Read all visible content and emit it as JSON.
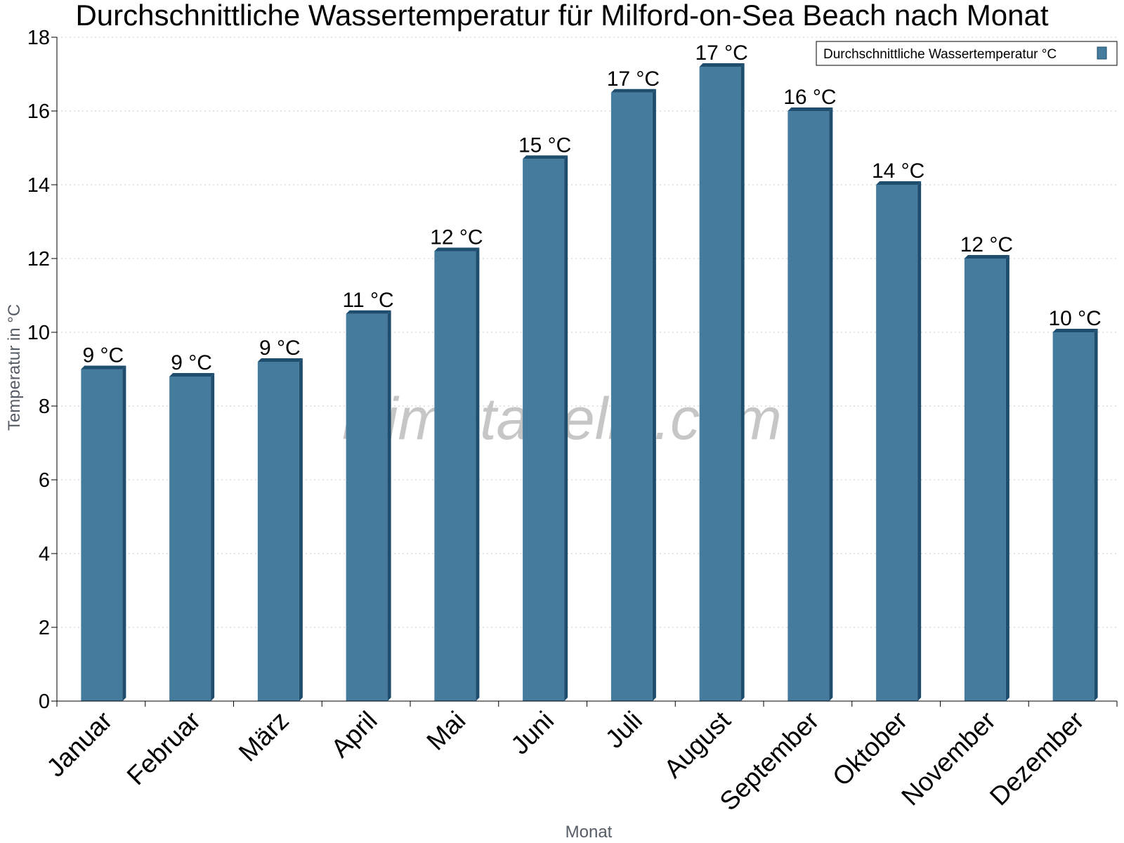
{
  "chart_data": {
    "type": "bar",
    "title": "Durchschnittliche Wassertemperatur für Milford-on-Sea Beach nach Monat",
    "xlabel": "Monat",
    "ylabel": "Temperatur in °C",
    "categories": [
      "Januar",
      "Februar",
      "März",
      "April",
      "Mai",
      "Juni",
      "Juli",
      "August",
      "September",
      "Oktober",
      "November",
      "Dezember"
    ],
    "series": [
      {
        "name": "Durchschnittliche Wassertemperatur °C",
        "values": [
          9.0,
          8.8,
          9.2,
          10.5,
          12.2,
          14.7,
          16.5,
          17.2,
          16.0,
          14.0,
          12.0,
          10.0
        ],
        "labels": [
          "9 °C",
          "9 °C",
          "9 °C",
          "11 °C",
          "12 °C",
          "15 °C",
          "17 °C",
          "17 °C",
          "16 °C",
          "14 °C",
          "12 °C",
          "10 °C"
        ]
      }
    ],
    "ylim": [
      0,
      18
    ],
    "yticks": [
      0,
      2,
      4,
      6,
      8,
      10,
      12,
      14,
      16,
      18
    ],
    "grid": true,
    "legend": "top-right",
    "watermark": "klimatabelle.com",
    "colors": {
      "bar": "#457b9d",
      "bar_dark": "#1e4d6e"
    }
  }
}
